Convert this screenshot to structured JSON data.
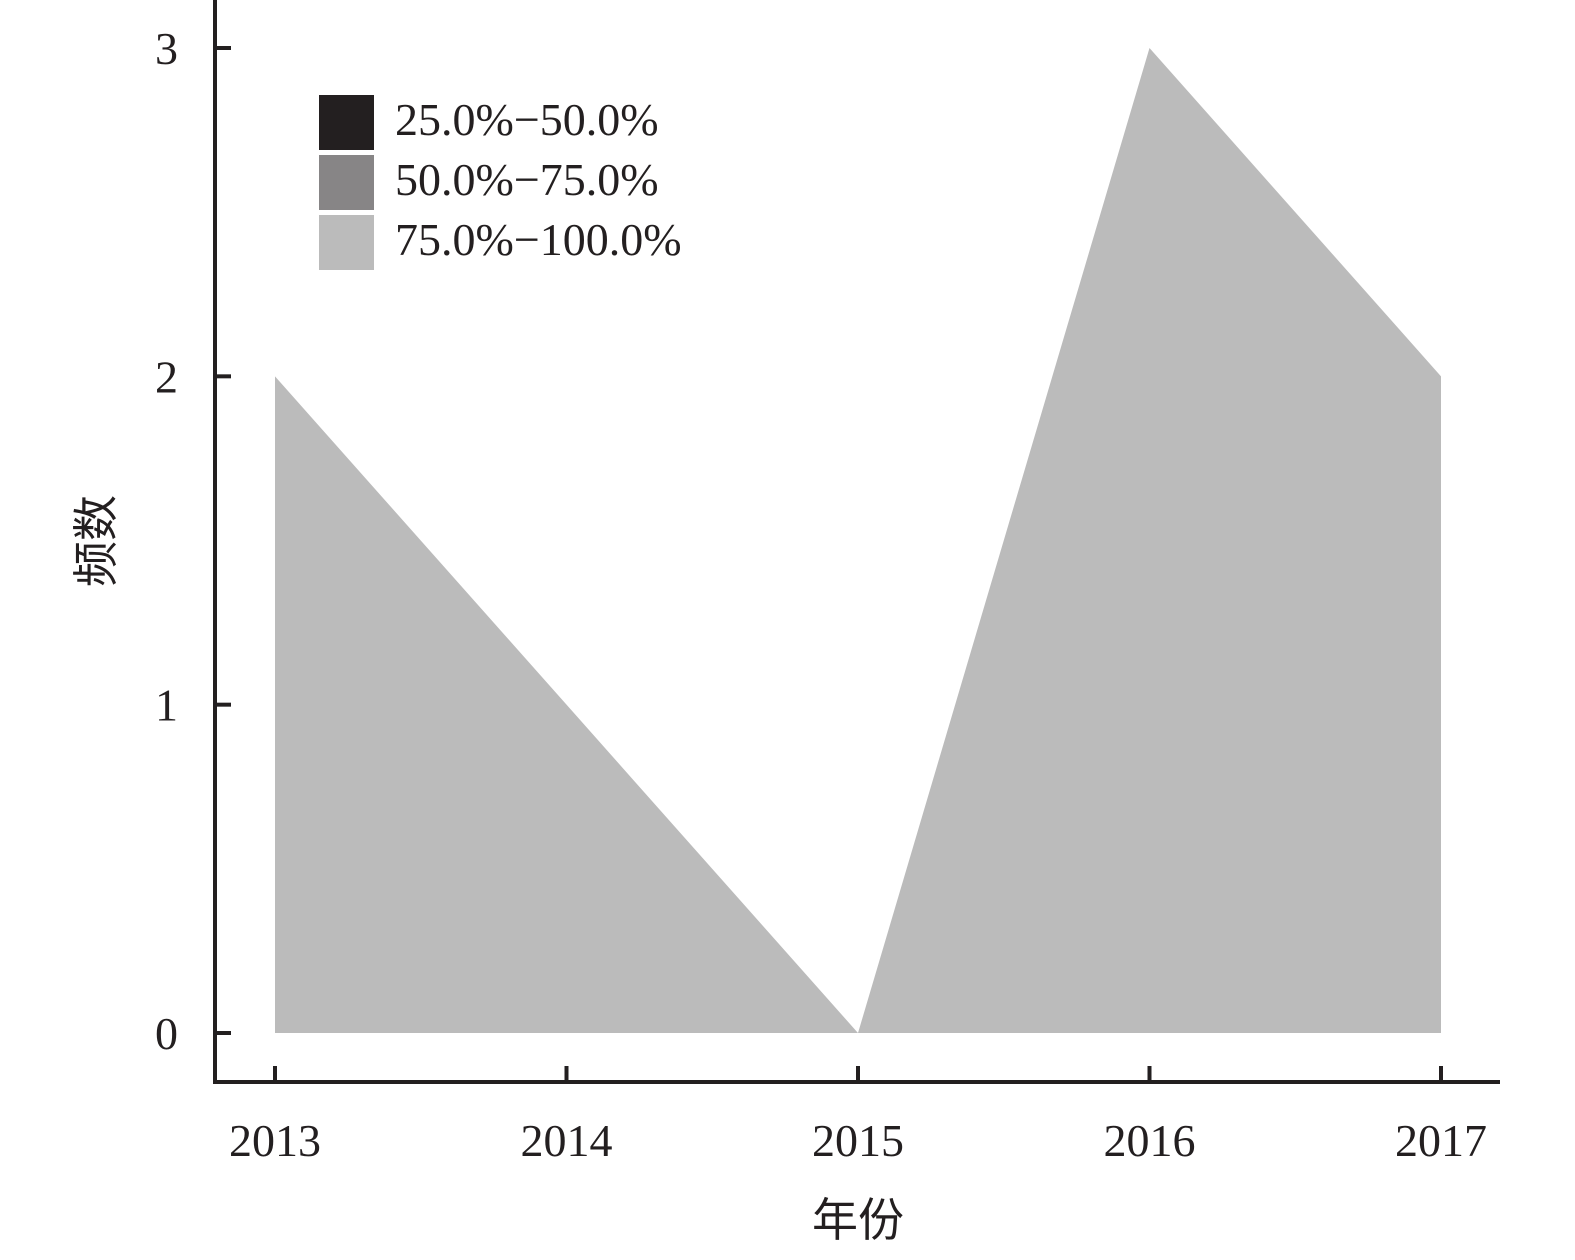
{
  "chart_data": {
    "type": "area",
    "title": "",
    "xlabel": "年份",
    "ylabel": "频数",
    "categories": [
      "2013",
      "2014",
      "2015",
      "2016",
      "2017"
    ],
    "yticks": [
      "0",
      "1",
      "2",
      "3"
    ],
    "ylim": [
      -0.15,
      3.15
    ],
    "grid": false,
    "legend_position": "top-left",
    "series": [
      {
        "name": "25.0%−50.0%",
        "color": "#231f20",
        "values": [
          0,
          0,
          0,
          0,
          0
        ]
      },
      {
        "name": "50.0%−75.0%",
        "color": "#878586",
        "values": [
          0,
          0,
          0,
          0,
          0
        ]
      },
      {
        "name": "75.0%−100.0%",
        "color": "#bbbbbb",
        "values": [
          2,
          1,
          0,
          3,
          2
        ]
      }
    ]
  }
}
